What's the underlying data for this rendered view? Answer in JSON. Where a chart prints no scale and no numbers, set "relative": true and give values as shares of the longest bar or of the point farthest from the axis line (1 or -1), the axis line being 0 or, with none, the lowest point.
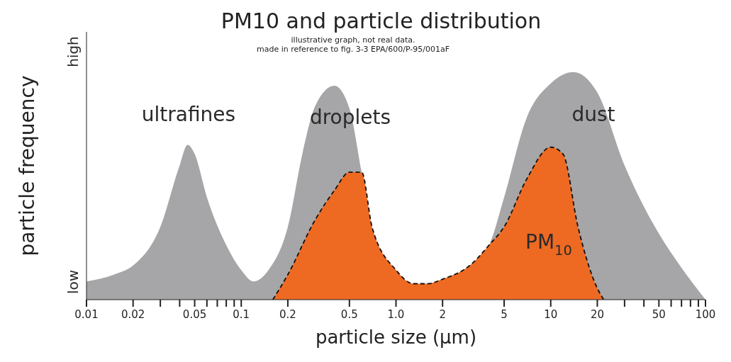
{
  "chart_data": {
    "type": "area",
    "title": "PM10 and particle distribution",
    "subtitle": "illustrative graph, not real data.",
    "xlabel": "particle size (µm)",
    "ylabel": "particle frequency",
    "log": "x",
    "relative": true,
    "xlim": [
      0.01,
      100
    ],
    "xticks": [
      0.01,
      0.02,
      {
        "value": 0.03,
        "label": null
      },
      {
        "value": 0.04,
        "label": null
      },
      0.05,
      {
        "value": 0.06,
        "label": null
      },
      {
        "value": 0.07,
        "label": null
      },
      {
        "value": 0.08,
        "label": null
      },
      {
        "value": 0.09,
        "label": null
      },
      0.1,
      0.2,
      0.5,
      {
        "value": 1,
        "label": "1.0"
      },
      2,
      5,
      10,
      20,
      {
        "value": 30,
        "label": null
      },
      {
        "value": 40,
        "label": null
      },
      50,
      {
        "value": 60,
        "label": null
      },
      {
        "value": 70,
        "label": null
      },
      {
        "value": 80,
        "label": null
      },
      {
        "value": 90,
        "label": null
      },
      100
    ],
    "series": [
      {
        "color": "#a6a6a8",
        "x": [
          0.01,
          0.015,
          0.02,
          0.03,
          0.04,
          0.045,
          0.05,
          0.06,
          0.08,
          0.1,
          0.12,
          0.15,
          0.2,
          0.25,
          0.3,
          0.4,
          0.5,
          0.6,
          0.7,
          1,
          1.3,
          1.6,
          2,
          3,
          4,
          5,
          7,
          10,
          14,
          20,
          30,
          50,
          70,
          100
        ],
        "values": [
          0.08,
          0.11,
          0.15,
          0.32,
          0.59,
          0.68,
          0.64,
          0.45,
          0.24,
          0.13,
          0.08,
          0.13,
          0.32,
          0.65,
          0.85,
          0.94,
          0.84,
          0.56,
          0.32,
          0.13,
          0.07,
          0.07,
          0.09,
          0.15,
          0.24,
          0.45,
          0.8,
          0.95,
          1,
          0.91,
          0.59,
          0.29,
          0.14,
          0
        ]
      },
      {
        "color": "#ee6a22",
        "line_style": "dashed",
        "x": [
          0.16,
          0.2,
          0.3,
          0.4,
          0.5,
          0.6,
          0.7,
          1,
          1.3,
          1.6,
          2,
          3,
          4,
          5,
          7,
          10,
          12,
          15,
          20,
          22
        ],
        "values": [
          0,
          0.11,
          0.35,
          0.48,
          0.56,
          0.56,
          0.32,
          0.13,
          0.07,
          0.07,
          0.09,
          0.15,
          0.24,
          0.32,
          0.53,
          0.67,
          0.64,
          0.32,
          0.05,
          0
        ]
      }
    ],
    "annotations": [
      "made in reference to fig. 3-3 EPA/600/P-95/001aF",
      "low",
      "high",
      "ultrafines",
      "droplets",
      "dust",
      "PM$_{10}$"
    ]
  }
}
